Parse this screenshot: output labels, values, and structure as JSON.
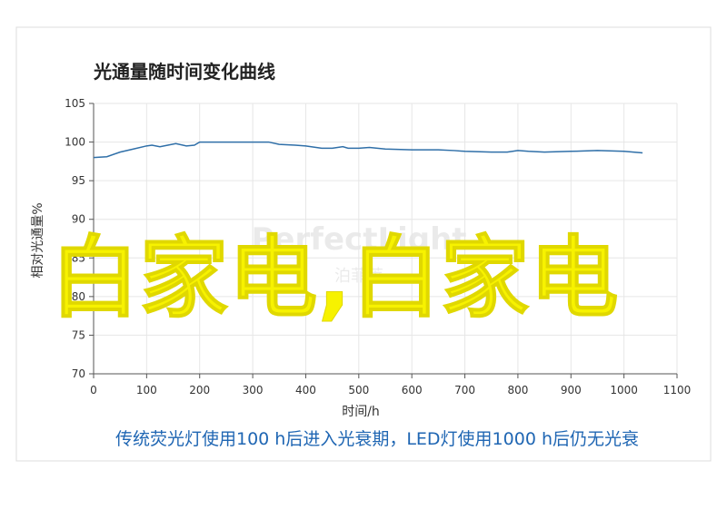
{
  "chart_data": {
    "type": "line",
    "title": "光通量随时间变化曲线",
    "x_label": "时间/h",
    "y_label": "相对光通量%",
    "caption": "传统荧光灯使用100 h后进入光衰期，LED灯使用1000 h后仍无光衰",
    "x": [
      0,
      25,
      50,
      75,
      100,
      110,
      125,
      140,
      155,
      175,
      190,
      200,
      250,
      300,
      330,
      350,
      380,
      400,
      430,
      450,
      470,
      480,
      500,
      520,
      550,
      600,
      650,
      680,
      700,
      750,
      780,
      800,
      820,
      850,
      900,
      950,
      1000,
      1035
    ],
    "series": [
      {
        "name": "LED",
        "color": "#2f6fa8",
        "values": [
          98,
          98.1,
          98.7,
          99.1,
          99.5,
          99.6,
          99.4,
          99.6,
          99.8,
          99.5,
          99.6,
          100,
          100,
          100,
          100,
          99.7,
          99.6,
          99.5,
          99.2,
          99.2,
          99.4,
          99.2,
          99.2,
          99.3,
          99.1,
          99,
          99,
          98.9,
          98.8,
          98.7,
          98.7,
          98.9,
          98.8,
          98.7,
          98.8,
          98.9,
          98.8,
          98.6
        ]
      }
    ],
    "xlim": [
      0,
      1100
    ],
    "xticks": [
      0,
      100,
      200,
      300,
      400,
      500,
      600,
      700,
      800,
      900,
      1000,
      1100
    ],
    "ylim": [
      70,
      105
    ],
    "yticks": [
      70,
      75,
      80,
      85,
      90,
      95,
      100,
      105
    ],
    "grid": true
  },
  "watermark": {
    "brand": "PerfectLight",
    "cn": "泊菲莱"
  },
  "overlay_text": "白家电,白家电"
}
